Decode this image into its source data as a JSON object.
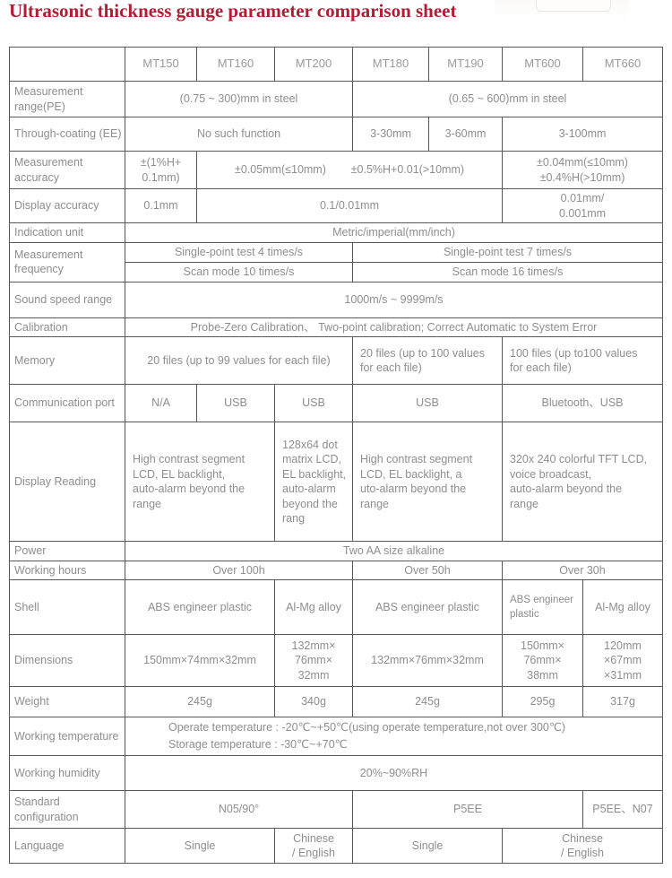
{
  "title": "Ultrasonic thickness gauge parameter comparison sheet",
  "colors": {
    "title": "#b01e35",
    "text": "#8e8e8e",
    "border": "#585858"
  },
  "table": {
    "models": [
      "MT150",
      "MT160",
      "MT200",
      "MT180",
      "MT190",
      "MT600",
      "MT660"
    ],
    "rows": [
      {
        "name": "measurement-range",
        "label": "Measurement range(PE)",
        "cells": [
          {
            "t": "(0.75 ~ 300)mm in steel",
            "cs": 3
          },
          {
            "t": "(0.65 ~ 600)mm in steel",
            "cs": 4
          }
        ]
      },
      {
        "name": "through-coating",
        "label": "Through-coating (EE)",
        "cells": [
          {
            "t": "No such function",
            "cs": 3
          },
          {
            "t": "3-30mm"
          },
          {
            "t": "3-60mm"
          },
          {
            "t": "3-100mm",
            "cs": 2
          }
        ]
      },
      {
        "name": "measurement-accuracy",
        "label": "Measurement accuracy",
        "cells": [
          {
            "t": "±(1%H+\n0.1mm)"
          },
          {
            "t": "±0.05mm(≤10mm)        ±0.5%H+0.01(>10mm)",
            "cs": 4
          },
          {
            "t": "±0.04mm(≤10mm)\n±0.4%H(>10mm)",
            "cs": 2
          }
        ]
      },
      {
        "name": "display-accuracy",
        "label": "Display accuracy",
        "cells": [
          {
            "t": "0.1mm"
          },
          {
            "t": "0.1/0.01mm",
            "cs": 4
          },
          {
            "t": "0.01mm/\n0.001mm",
            "cs": 2
          }
        ]
      },
      {
        "name": "indication-unit",
        "label": "Indication unit",
        "cells": [
          {
            "t": "Metric/imperial(mm/inch)",
            "cs": 7
          }
        ]
      },
      {
        "name": "measurement-frequency",
        "label": "Measurement frequency",
        "subrows": [
          [
            {
              "t": "Single-point test 4 times/s",
              "cs": 3
            },
            {
              "t": "Single-point test 7 times/s",
              "cs": 4
            }
          ],
          [
            {
              "t": "Scan mode 10 times/s",
              "cs": 3
            },
            {
              "t": "Scan mode 16 times/s",
              "cs": 4
            }
          ]
        ]
      },
      {
        "name": "sound-speed-range",
        "label": "Sound speed range",
        "cells": [
          {
            "t": "1000m/s ~ 9999m/s",
            "cs": 7
          }
        ]
      },
      {
        "name": "calibration",
        "label": "Calibration",
        "cells": [
          {
            "t": "Probe-Zero Calibration、 Two-point calibration; Correct Automatic to System Error",
            "cs": 7
          }
        ]
      },
      {
        "name": "memory",
        "label": "Memory",
        "cells": [
          {
            "t": "20 files (up to 99 values for each file)",
            "cs": 3
          },
          {
            "t": "20 files (up to 100 values\nfor each file)",
            "cs": 2,
            "align": "l"
          },
          {
            "t": "100 files (up to100 values\nfor each file)",
            "cs": 2,
            "align": "l"
          }
        ]
      },
      {
        "name": "communication-port",
        "label": "Communication port",
        "cells": [
          {
            "t": "N/A"
          },
          {
            "t": "USB"
          },
          {
            "t": "USB"
          },
          {
            "t": "USB",
            "cs": 2
          },
          {
            "t": "Bluetooth、USB",
            "cs": 2
          }
        ]
      },
      {
        "name": "display-reading",
        "label": "Display Reading",
        "cells": [
          {
            "t": "High contrast segment\nLCD, EL backlight,\nauto-alarm beyond the\nrange",
            "cs": 2,
            "align": "l"
          },
          {
            "t": "128x64 dot\nmatrix LCD,\nEL backlight,\nauto-alarm\nbeyond the\nrang",
            "align": "l"
          },
          {
            "t": "High contrast segment\nLCD, EL backlight, a\nuto-alarm beyond the\nrange",
            "cs": 2,
            "align": "l"
          },
          {
            "t": "320x 240 colorful TFT LCD,\nvoice broadcast,\nauto-alarm beyond the\nrange",
            "cs": 2,
            "align": "l"
          }
        ]
      },
      {
        "name": "power",
        "label": "Power",
        "cells": [
          {
            "t": "Two AA size alkaline",
            "cs": 7
          }
        ]
      },
      {
        "name": "working-hours",
        "label": "Working hours",
        "cells": [
          {
            "t": "Over 100h",
            "cs": 3
          },
          {
            "t": "Over 50h",
            "cs": 2
          },
          {
            "t": "Over 30h",
            "cs": 2
          }
        ]
      },
      {
        "name": "shell",
        "label": "Shell",
        "cells": [
          {
            "t": "ABS engineer plastic",
            "cs": 2
          },
          {
            "t": "Al-Mg alloy"
          },
          {
            "t": "ABS engineer plastic",
            "cs": 2
          },
          {
            "t": "ABS engineer\nplastic",
            "align": "l",
            "small": true
          },
          {
            "t": "Al-Mg alloy"
          }
        ]
      },
      {
        "name": "dimensions",
        "label": "Dimensions",
        "cells": [
          {
            "t": "150mm×74mm×32mm",
            "cs": 2
          },
          {
            "t": "132mm×\n76mm×\n32mm"
          },
          {
            "t": "132mm×76mm×32mm",
            "cs": 2
          },
          {
            "t": "150mm×\n76mm×\n38mm"
          },
          {
            "t": "120mm\n×67mm\n×31mm"
          }
        ]
      },
      {
        "name": "weight",
        "label": "Weight",
        "cells": [
          {
            "t": "245g",
            "cs": 2
          },
          {
            "t": "340g"
          },
          {
            "t": "245g",
            "cs": 2
          },
          {
            "t": "295g"
          },
          {
            "t": "317g"
          }
        ]
      },
      {
        "name": "working-temperature",
        "label": "Working temperature",
        "cells": [
          {
            "t": "Operate temperature : -20℃~+50℃(using operate temperature,not over 300℃)\nStorage temperature : -30℃~+70℃",
            "cs": 7,
            "align": "l",
            "indent": 48
          }
        ]
      },
      {
        "name": "working-humidity",
        "label": "Working humidity",
        "cells": [
          {
            "t": "20%~90%RH",
            "cs": 7
          }
        ]
      },
      {
        "name": "standard-configuration",
        "label": "Standard configuration",
        "cells": [
          {
            "t": "N05/90°",
            "cs": 3
          },
          {
            "t": "P5EE",
            "cs": 3
          },
          {
            "t": "P5EE、N07"
          }
        ]
      },
      {
        "name": "language",
        "label": "Language",
        "cells": [
          {
            "t": "Single",
            "cs": 2
          },
          {
            "t": "Chinese\n/ English"
          },
          {
            "t": "Single",
            "cs": 2
          },
          {
            "t": "Chinese\n/ English",
            "cs": 2
          }
        ]
      }
    ]
  }
}
